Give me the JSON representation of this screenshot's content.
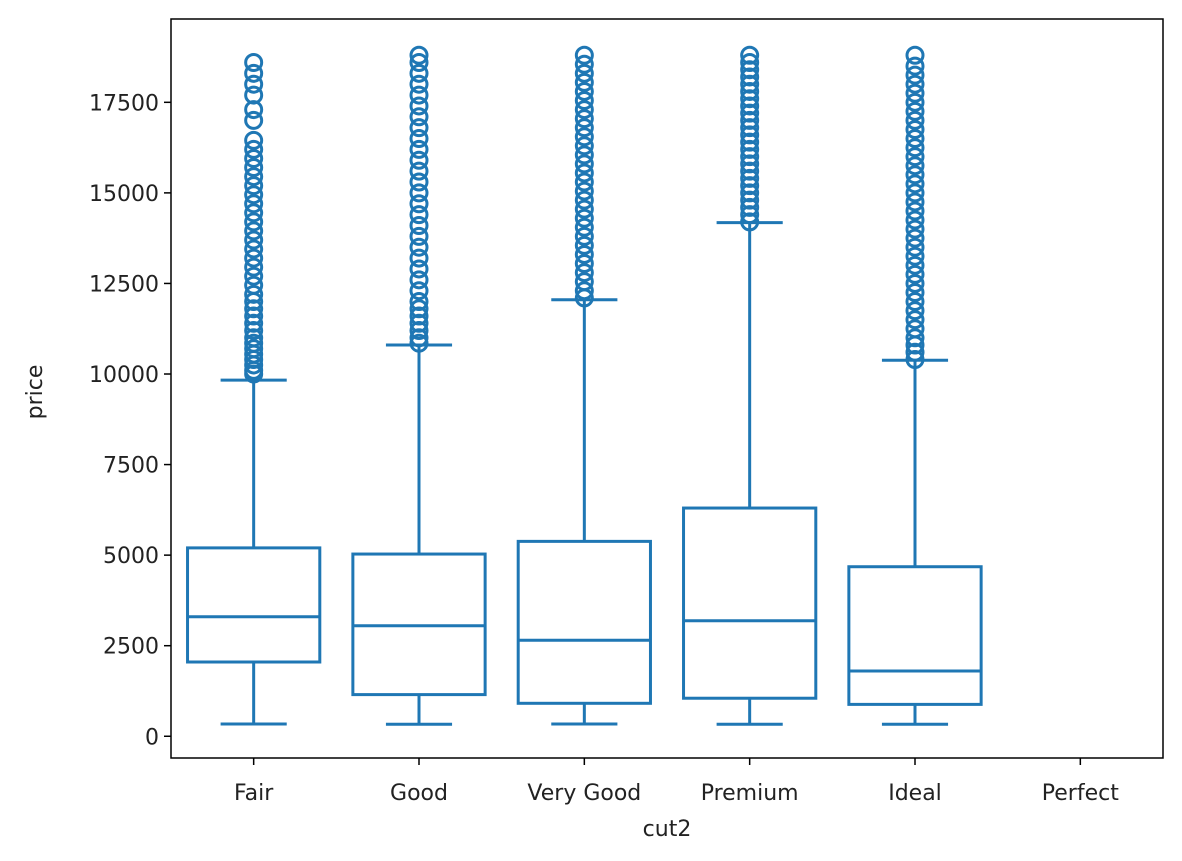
{
  "chart_data": {
    "type": "box",
    "xlabel": "cut2",
    "ylabel": "price",
    "ylim": [
      -600,
      19800
    ],
    "yticks": [
      0,
      2500,
      5000,
      7500,
      10000,
      12500,
      15000,
      17500
    ],
    "categories": [
      "Fair",
      "Good",
      "Very Good",
      "Premium",
      "Ideal",
      "Perfect"
    ],
    "color": "#1f77b4",
    "boxes": [
      {
        "category": "Fair",
        "whislo": 340,
        "q1": 2050,
        "median": 3300,
        "q3": 5200,
        "whishi": 9830,
        "fliers": [
          10000,
          10100,
          10250,
          10400,
          10550,
          10700,
          10850,
          11000,
          11200,
          11400,
          11600,
          11800,
          12000,
          12200,
          12450,
          12700,
          12950,
          13200,
          13450,
          13700,
          13950,
          14200,
          14450,
          14700,
          14950,
          15200,
          15450,
          15700,
          15950,
          16200,
          16450,
          17000,
          17300,
          17700,
          18000,
          18300,
          18600
        ]
      },
      {
        "category": "Good",
        "whislo": 330,
        "q1": 1150,
        "median": 3050,
        "q3": 5030,
        "whishi": 10800,
        "fliers": [
          10850,
          11000,
          11200,
          11400,
          11600,
          11800,
          12000,
          12300,
          12600,
          12900,
          13200,
          13500,
          13800,
          14100,
          14400,
          14700,
          15000,
          15300,
          15600,
          15900,
          16200,
          16500,
          16800,
          17100,
          17400,
          17700,
          18000,
          18300,
          18600,
          18800
        ]
      },
      {
        "category": "Very Good",
        "whislo": 340,
        "q1": 910,
        "median": 2650,
        "q3": 5380,
        "whishi": 12050,
        "fliers": [
          12100,
          12300,
          12550,
          12800,
          13050,
          13300,
          13550,
          13800,
          14050,
          14300,
          14550,
          14800,
          15050,
          15300,
          15550,
          15800,
          16050,
          16300,
          16550,
          16800,
          17050,
          17300,
          17550,
          17800,
          18050,
          18300,
          18550,
          18800
        ]
      },
      {
        "category": "Premium",
        "whislo": 330,
        "q1": 1050,
        "median": 3190,
        "q3": 6300,
        "whishi": 14180,
        "fliers": [
          14200,
          14400,
          14600,
          14800,
          15000,
          15200,
          15400,
          15600,
          15800,
          16000,
          16200,
          16400,
          16600,
          16800,
          17000,
          17200,
          17400,
          17600,
          17800,
          18000,
          18200,
          18400,
          18600,
          18800
        ]
      },
      {
        "category": "Ideal",
        "whislo": 330,
        "q1": 880,
        "median": 1800,
        "q3": 4680,
        "whishi": 10380,
        "fliers": [
          10400,
          10600,
          10800,
          11000,
          11250,
          11500,
          11750,
          12000,
          12250,
          12500,
          12750,
          13000,
          13250,
          13500,
          13750,
          14000,
          14250,
          14500,
          14750,
          15000,
          15250,
          15500,
          15750,
          16000,
          16250,
          16500,
          16750,
          17000,
          17250,
          17500,
          17750,
          18000,
          18250,
          18500,
          18800
        ]
      },
      {
        "category": "Perfect",
        "whislo": null,
        "q1": null,
        "median": null,
        "q3": null,
        "whishi": null,
        "fliers": []
      }
    ],
    "grid": false,
    "legend": "none"
  }
}
